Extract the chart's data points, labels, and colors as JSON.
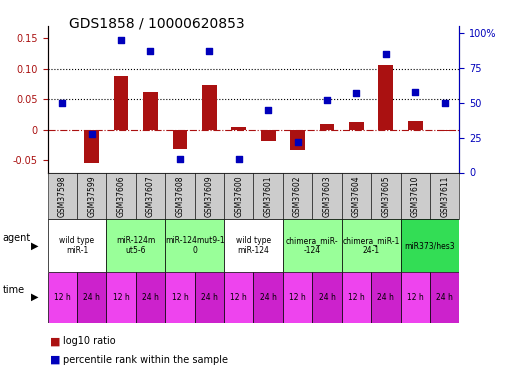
{
  "title": "GDS1858 / 10000620853",
  "samples": [
    "GSM37598",
    "GSM37599",
    "GSM37606",
    "GSM37607",
    "GSM37608",
    "GSM37609",
    "GSM37600",
    "GSM37601",
    "GSM37602",
    "GSM37603",
    "GSM37604",
    "GSM37605",
    "GSM37610",
    "GSM37611"
  ],
  "log10_ratio": [
    0.0,
    -0.055,
    0.088,
    0.062,
    -0.032,
    0.073,
    0.005,
    -0.018,
    -0.033,
    0.01,
    0.013,
    0.107,
    0.015,
    -0.002
  ],
  "percentile_rank": [
    50,
    28,
    95,
    87,
    10,
    87,
    10,
    45,
    22,
    52,
    57,
    85,
    58,
    50
  ],
  "agents": [
    {
      "label": "wild type\nmiR-1",
      "samples": [
        0,
        1
      ],
      "color": "#ffffff"
    },
    {
      "label": "miR-124m\nut5-6",
      "samples": [
        2,
        3
      ],
      "color": "#99ff99"
    },
    {
      "label": "miR-124mut9-1\n0",
      "samples": [
        4,
        5
      ],
      "color": "#99ff99"
    },
    {
      "label": "wild type\nmiR-124",
      "samples": [
        6,
        7
      ],
      "color": "#ffffff"
    },
    {
      "label": "chimera_miR-\n-124",
      "samples": [
        8,
        9
      ],
      "color": "#99ff99"
    },
    {
      "label": "chimera_miR-1\n24-1",
      "samples": [
        10,
        11
      ],
      "color": "#99ff99"
    },
    {
      "label": "miR373/hes3",
      "samples": [
        12,
        13
      ],
      "color": "#33dd55"
    }
  ],
  "time_labels": [
    "12 h",
    "24 h",
    "12 h",
    "24 h",
    "12 h",
    "24 h",
    "12 h",
    "24 h",
    "12 h",
    "24 h",
    "12 h",
    "24 h",
    "12 h",
    "24 h"
  ],
  "bar_color": "#aa1111",
  "point_color": "#0000bb",
  "ylim_left": [
    -0.07,
    0.17
  ],
  "ylim_right": [
    0,
    105
  ],
  "yticks_left": [
    -0.05,
    0.0,
    0.05,
    0.1,
    0.15
  ],
  "ytick_labels_left": [
    "-0.05",
    "0",
    "0.05",
    "0.10",
    "0.15"
  ],
  "yticks_right": [
    0,
    25,
    50,
    75,
    100
  ],
  "ytick_labels_right": [
    "0",
    "25",
    "50",
    "75",
    "100%"
  ],
  "hlines": [
    0.1,
    0.05
  ],
  "bg_color": "#ffffff",
  "sample_bg": "#cccccc",
  "time_color_odd": "#ee44ee",
  "time_color_even": "#cc22cc"
}
